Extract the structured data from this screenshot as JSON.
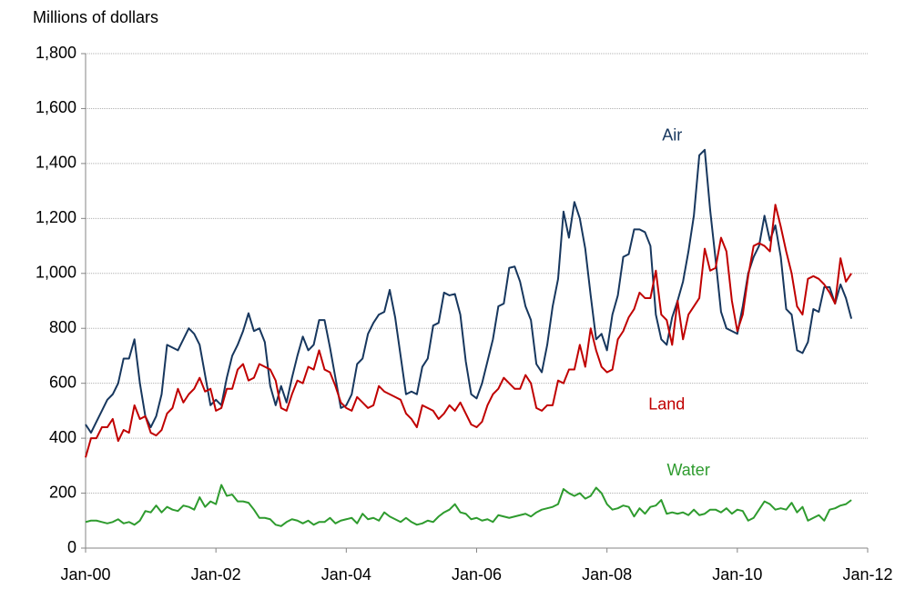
{
  "chart_data": {
    "type": "line",
    "y_label": "Millions of dollars",
    "x": [
      "2000-01",
      "2000-02",
      "2000-03",
      "2000-04",
      "2000-05",
      "2000-06",
      "2000-07",
      "2000-08",
      "2000-09",
      "2000-10",
      "2000-11",
      "2000-12",
      "2001-01",
      "2001-02",
      "2001-03",
      "2001-04",
      "2001-05",
      "2001-06",
      "2001-07",
      "2001-08",
      "2001-09",
      "2001-10",
      "2001-11",
      "2001-12",
      "2002-01",
      "2002-02",
      "2002-03",
      "2002-04",
      "2002-05",
      "2002-06",
      "2002-07",
      "2002-08",
      "2002-09",
      "2002-10",
      "2002-11",
      "2002-12",
      "2003-01",
      "2003-02",
      "2003-03",
      "2003-04",
      "2003-05",
      "2003-06",
      "2003-07",
      "2003-08",
      "2003-09",
      "2003-10",
      "2003-11",
      "2003-12",
      "2004-01",
      "2004-02",
      "2004-03",
      "2004-04",
      "2004-05",
      "2004-06",
      "2004-07",
      "2004-08",
      "2004-09",
      "2004-10",
      "2004-11",
      "2004-12",
      "2005-01",
      "2005-02",
      "2005-03",
      "2005-04",
      "2005-05",
      "2005-06",
      "2005-07",
      "2005-08",
      "2005-09",
      "2005-10",
      "2005-11",
      "2005-12",
      "2006-01",
      "2006-02",
      "2006-03",
      "2006-04",
      "2006-05",
      "2006-06",
      "2006-07",
      "2006-08",
      "2006-09",
      "2006-10",
      "2006-11",
      "2006-12",
      "2007-01",
      "2007-02",
      "2007-03",
      "2007-04",
      "2007-05",
      "2007-06",
      "2007-07",
      "2007-08",
      "2007-09",
      "2007-10",
      "2007-11",
      "2007-12",
      "2008-01",
      "2008-02",
      "2008-03",
      "2008-04",
      "2008-05",
      "2008-06",
      "2008-07",
      "2008-08",
      "2008-09",
      "2008-10",
      "2008-11",
      "2008-12",
      "2009-01",
      "2009-02",
      "2009-03",
      "2009-04",
      "2009-05",
      "2009-06",
      "2009-07",
      "2009-08",
      "2009-09",
      "2009-10",
      "2009-11",
      "2009-12",
      "2010-01",
      "2010-02",
      "2010-03",
      "2010-04",
      "2010-05",
      "2010-06",
      "2010-07",
      "2010-08",
      "2010-09",
      "2010-10",
      "2010-11",
      "2010-12",
      "2011-01",
      "2011-02",
      "2011-03",
      "2011-04",
      "2011-05",
      "2011-06",
      "2011-07",
      "2011-08",
      "2011-09",
      "2011-10"
    ],
    "series": [
      {
        "name": "Air",
        "color": "#17375e",
        "label_at": [
          "2009-01",
          1500
        ],
        "values": [
          450,
          420,
          460,
          500,
          540,
          560,
          600,
          690,
          690,
          760,
          600,
          480,
          440,
          480,
          560,
          740,
          730,
          720,
          760,
          800,
          780,
          740,
          630,
          520,
          540,
          520,
          620,
          700,
          740,
          790,
          855,
          790,
          800,
          750,
          590,
          520,
          590,
          530,
          620,
          700,
          770,
          720,
          740,
          830,
          830,
          730,
          620,
          510,
          520,
          560,
          670,
          690,
          780,
          820,
          850,
          860,
          940,
          840,
          700,
          560,
          570,
          560,
          660,
          690,
          810,
          820,
          930,
          920,
          925,
          850,
          680,
          560,
          545,
          600,
          680,
          760,
          880,
          890,
          1020,
          1025,
          970,
          880,
          830,
          670,
          640,
          740,
          880,
          980,
          1225,
          1130,
          1260,
          1200,
          1090,
          920,
          760,
          780,
          720,
          850,
          920,
          1060,
          1070,
          1160,
          1160,
          1150,
          1100,
          850,
          760,
          740,
          840,
          900,
          970,
          1080,
          1210,
          1430,
          1450,
          1230,
          1050,
          860,
          800,
          790,
          780,
          880,
          1000,
          1060,
          1100,
          1210,
          1120,
          1175,
          1060,
          870,
          850,
          720,
          710,
          750,
          870,
          860,
          950,
          950,
          890,
          960,
          910,
          835
        ]
      },
      {
        "name": "Land",
        "color": "#c00000",
        "label_at": [
          "2008-12",
          520
        ],
        "values": [
          330,
          400,
          400,
          440,
          440,
          470,
          390,
          430,
          420,
          520,
          470,
          480,
          420,
          410,
          430,
          490,
          510,
          580,
          530,
          560,
          580,
          620,
          570,
          580,
          500,
          510,
          580,
          580,
          650,
          670,
          610,
          620,
          670,
          660,
          650,
          610,
          510,
          500,
          560,
          610,
          600,
          660,
          650,
          720,
          650,
          640,
          590,
          530,
          510,
          500,
          550,
          530,
          510,
          520,
          590,
          570,
          560,
          550,
          540,
          490,
          470,
          440,
          520,
          510,
          500,
          470,
          490,
          520,
          500,
          530,
          490,
          450,
          440,
          460,
          520,
          560,
          580,
          620,
          600,
          580,
          580,
          630,
          600,
          510,
          500,
          520,
          520,
          610,
          600,
          650,
          650,
          740,
          660,
          800,
          720,
          660,
          640,
          650,
          760,
          790,
          840,
          870,
          930,
          910,
          910,
          1010,
          850,
          830,
          740,
          900,
          760,
          850,
          880,
          910,
          1090,
          1010,
          1020,
          1130,
          1080,
          900,
          790,
          850,
          990,
          1100,
          1110,
          1100,
          1080,
          1250,
          1170,
          1080,
          1000,
          880,
          850,
          980,
          990,
          980,
          960,
          930,
          890,
          1055,
          970,
          1000
        ]
      },
      {
        "name": "Water",
        "color": "#2e9b2e",
        "label_at": [
          "2009-04",
          280
        ],
        "values": [
          95,
          100,
          100,
          95,
          90,
          95,
          105,
          90,
          95,
          85,
          100,
          135,
          130,
          155,
          130,
          150,
          140,
          135,
          155,
          150,
          140,
          185,
          150,
          170,
          160,
          230,
          190,
          195,
          170,
          170,
          165,
          140,
          110,
          110,
          105,
          85,
          80,
          95,
          105,
          100,
          90,
          100,
          85,
          95,
          95,
          110,
          90,
          100,
          105,
          110,
          90,
          125,
          105,
          110,
          100,
          130,
          115,
          105,
          95,
          110,
          95,
          85,
          90,
          100,
          95,
          115,
          130,
          140,
          160,
          130,
          125,
          105,
          110,
          100,
          105,
          95,
          120,
          115,
          110,
          115,
          120,
          125,
          115,
          130,
          140,
          145,
          150,
          160,
          215,
          200,
          190,
          200,
          180,
          190,
          220,
          200,
          160,
          140,
          145,
          155,
          150,
          115,
          145,
          125,
          150,
          155,
          175,
          125,
          130,
          125,
          130,
          120,
          140,
          120,
          125,
          140,
          140,
          130,
          145,
          125,
          140,
          135,
          100,
          110,
          140,
          170,
          160,
          140,
          145,
          140,
          165,
          130,
          150,
          100,
          110,
          120,
          100,
          140,
          145,
          155,
          160,
          175
        ]
      }
    ],
    "xlim": [
      "2000-01",
      "2012-01"
    ],
    "xticks": [
      {
        "value": "2000-01",
        "label": "Jan-00"
      },
      {
        "value": "2002-01",
        "label": "Jan-02"
      },
      {
        "value": "2004-01",
        "label": "Jan-04"
      },
      {
        "value": "2006-01",
        "label": "Jan-06"
      },
      {
        "value": "2008-01",
        "label": "Jan-08"
      },
      {
        "value": "2010-01",
        "label": "Jan-10"
      },
      {
        "value": "2012-01",
        "label": "Jan-12"
      }
    ],
    "ylim": [
      0,
      1800
    ],
    "yticks": [
      0,
      200,
      400,
      600,
      800,
      {
        "value": 1000,
        "label": "1,000"
      },
      {
        "value": 1200,
        "label": "1,200"
      },
      {
        "value": 1400,
        "label": "1,400"
      },
      {
        "value": 1600,
        "label": "1,600"
      },
      {
        "value": 1800,
        "label": "1,800"
      }
    ],
    "grid": true
  }
}
